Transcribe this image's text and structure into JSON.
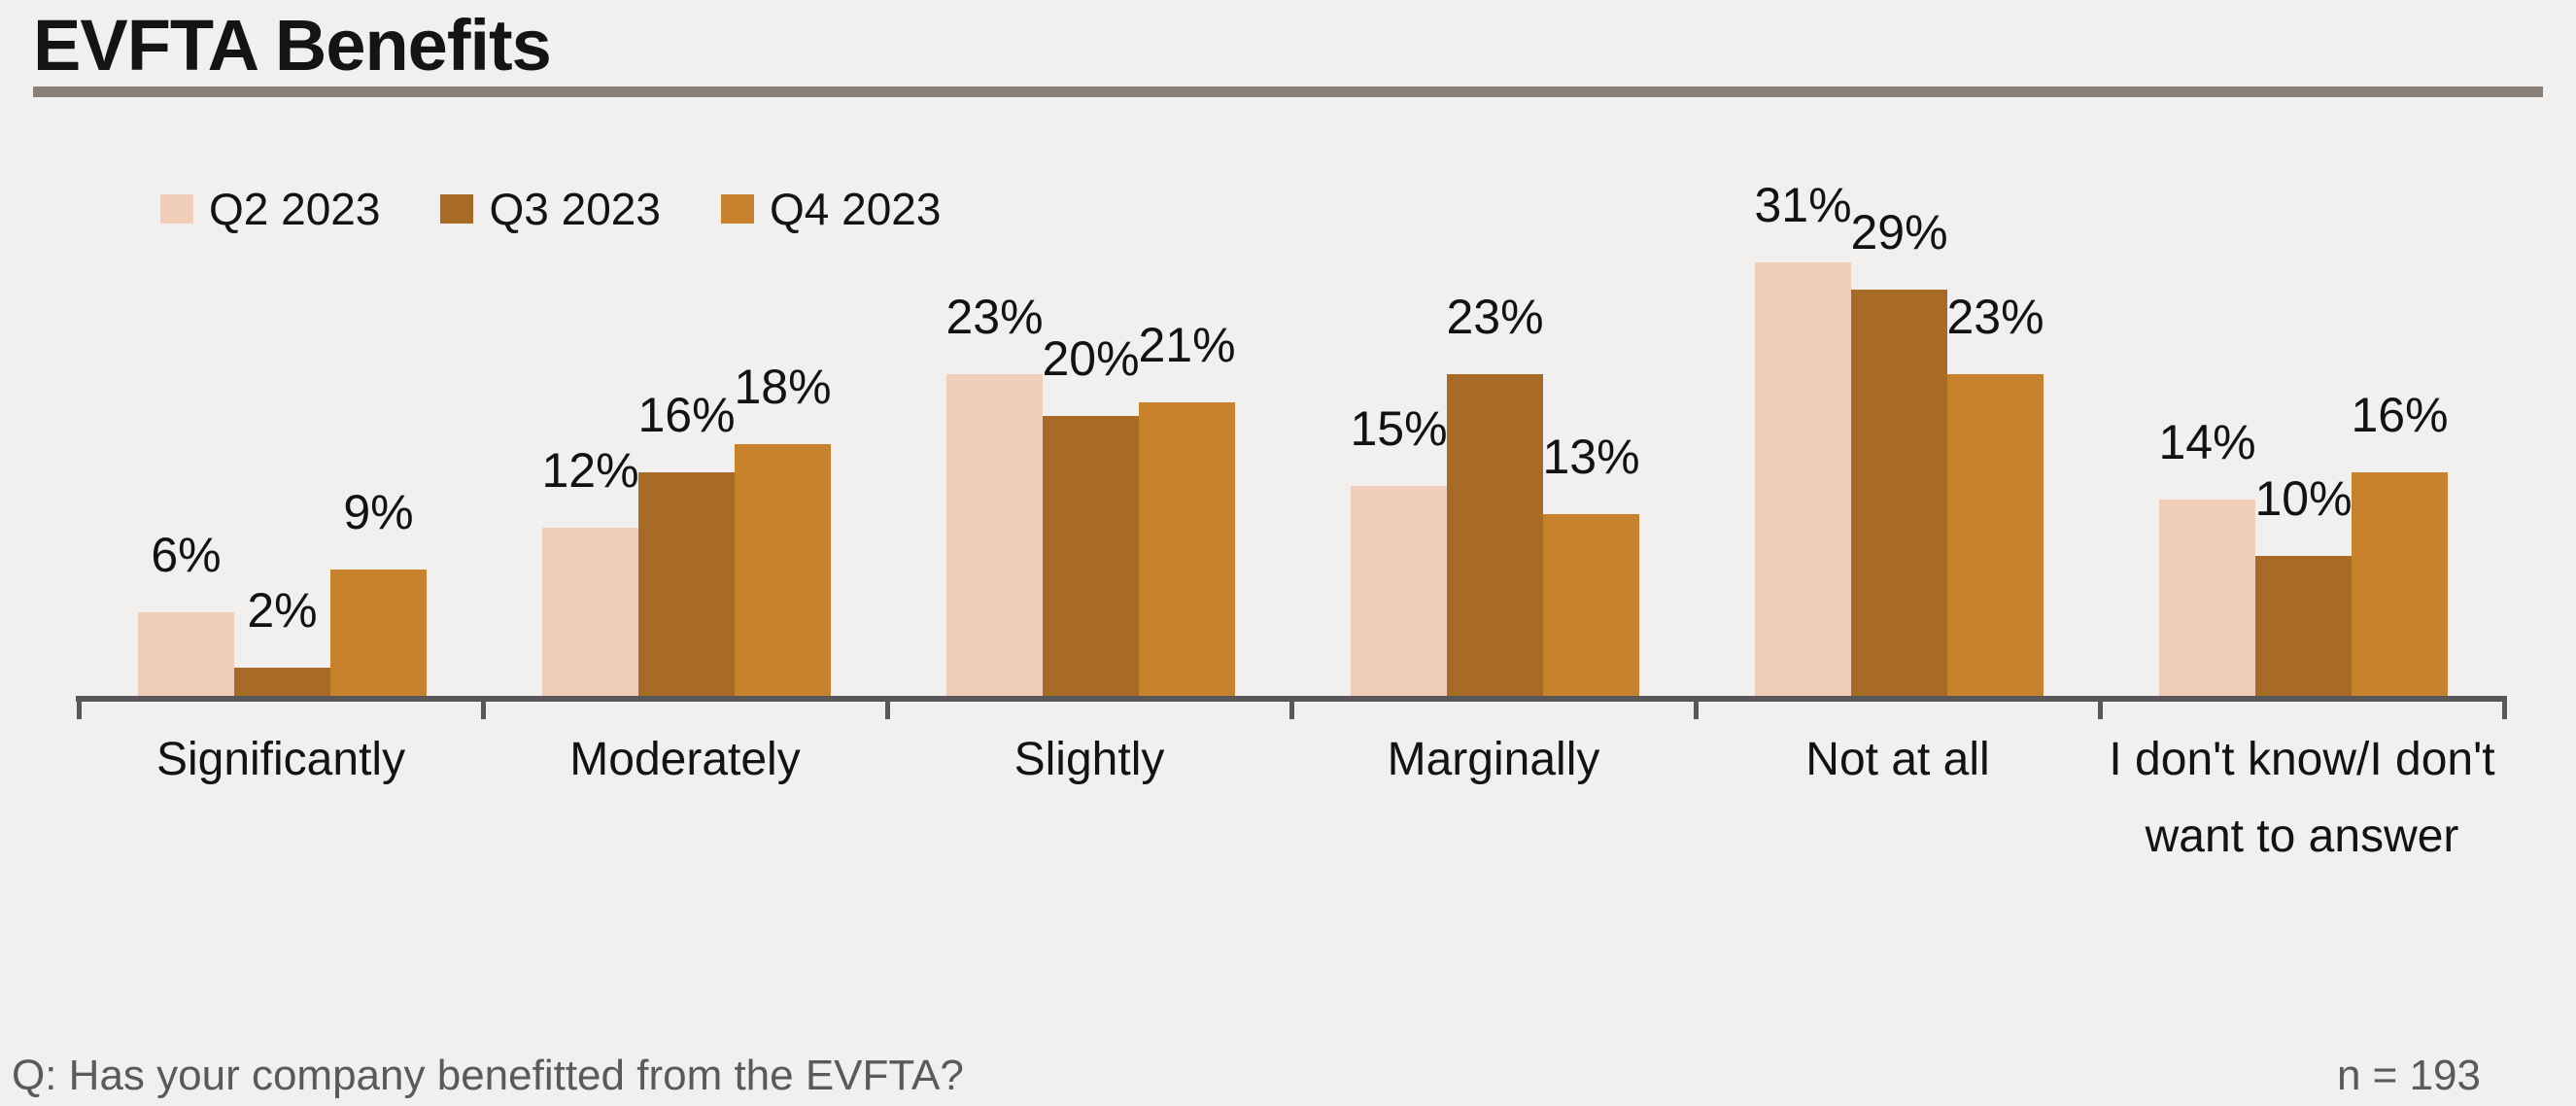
{
  "header": {
    "title": "EVFTA Benefits"
  },
  "footer": {
    "question": "Q: Has your company benefitted from the EVFTA?",
    "sample": "n = 193"
  },
  "colors": {
    "background": "#f1f0ee",
    "title_rule": "#8a8077",
    "axis": "#58585a",
    "text": "#131313",
    "footer_text": "#5a5a5c",
    "q2_2023": "#f1ceb9",
    "q3_2023": "#a76b27",
    "q4_2023": "#c8812d"
  },
  "chart_data": {
    "type": "bar",
    "title": "EVFTA Benefits",
    "categories": [
      "Significantly",
      "Moderately",
      "Slightly",
      "Marginally",
      "Not at all",
      "I don't know/I don't want to answer"
    ],
    "series": [
      {
        "name": "Q2 2023",
        "color": "#f1ceb9",
        "values": [
          6,
          12,
          23,
          15,
          31,
          14
        ]
      },
      {
        "name": "Q3 2023",
        "color": "#a76b27",
        "values": [
          2,
          16,
          20,
          23,
          29,
          10
        ]
      },
      {
        "name": "Q4 2023",
        "color": "#c8812d",
        "values": [
          9,
          18,
          21,
          13,
          23,
          16
        ]
      }
    ],
    "value_suffix": "%",
    "data_labels": true,
    "xlabel": "",
    "ylabel": "",
    "ylim": [
      0,
      33
    ],
    "grid": false,
    "y_axis_visible": false,
    "legend_position": "top-left"
  }
}
